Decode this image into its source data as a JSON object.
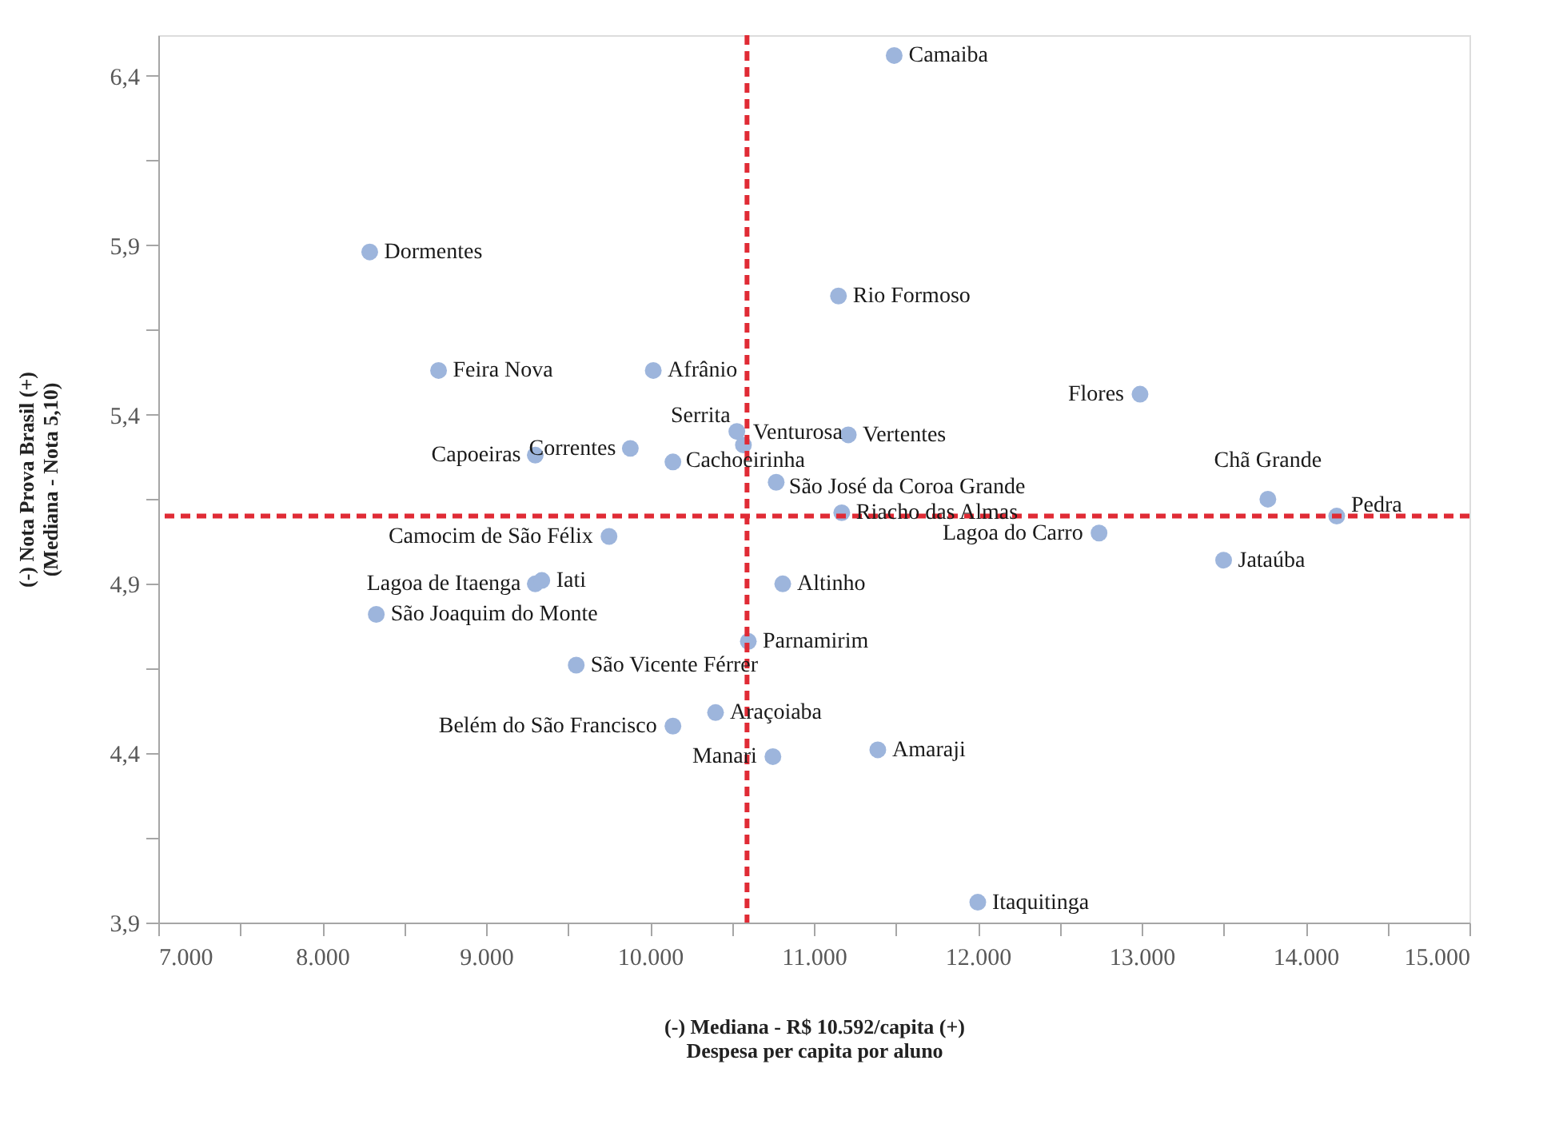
{
  "chart_data": {
    "type": "scatter",
    "xlabel": "(-)        Mediana - R$ 10.592/capita        (+)\nDespesa per capita por aluno",
    "ylabel": "(-)        Nota Prova Brasil        (+)\n(Mediana - Nota 5,10)",
    "marker": "circle",
    "color": "#9db5dc",
    "x": [
      11490,
      8290,
      11150,
      8710,
      10020,
      12990,
      10530,
      10570,
      11210,
      9880,
      9300,
      10140,
      10770,
      11170,
      13770,
      14190,
      12740,
      9750,
      13500,
      9300,
      9340,
      10810,
      8330,
      10600,
      9550,
      10400,
      10140,
      10750,
      11390,
      12000
    ],
    "values": [
      6.46,
      5.88,
      5.75,
      5.53,
      5.53,
      5.46,
      5.35,
      5.31,
      5.34,
      5.3,
      5.28,
      5.26,
      5.2,
      5.11,
      5.15,
      5.1,
      5.05,
      5.04,
      4.97,
      4.9,
      4.91,
      4.9,
      4.81,
      4.73,
      4.66,
      4.52,
      4.48,
      4.39,
      4.41,
      3.96
    ],
    "annotations": [
      {
        "text": "Camaiba",
        "x": 11490,
        "y": 6.46
      },
      {
        "text": "Dormentes",
        "x": 8290,
        "y": 5.88
      },
      {
        "text": "Rio Formoso",
        "x": 11150,
        "y": 5.75
      },
      {
        "text": "Feira Nova",
        "x": 8710,
        "y": 5.53
      },
      {
        "text": "Afrânio",
        "x": 10020,
        "y": 5.53
      },
      {
        "text": "Flores",
        "x": 12990,
        "y": 5.46
      },
      {
        "text": "Serrita",
        "x": 10530,
        "y": 5.35
      },
      {
        "text": "Venturosa",
        "x": 10570,
        "y": 5.31
      },
      {
        "text": "Vertentes",
        "x": 11210,
        "y": 5.34
      },
      {
        "text": "Correntes",
        "x": 9880,
        "y": 5.3
      },
      {
        "text": "Capoeiras",
        "x": 9300,
        "y": 5.28
      },
      {
        "text": "Cachoeirinha",
        "x": 10140,
        "y": 5.26
      },
      {
        "text": "São José da Coroa Grande",
        "x": 10770,
        "y": 5.2
      },
      {
        "text": "Riacho das Almas",
        "x": 11170,
        "y": 5.11
      },
      {
        "text": "Chã Grande",
        "x": 13770,
        "y": 5.15
      },
      {
        "text": "Pedra",
        "x": 14190,
        "y": 5.1
      },
      {
        "text": "Lagoa do Carro",
        "x": 12740,
        "y": 5.05
      },
      {
        "text": "Camocim de São Félix",
        "x": 9750,
        "y": 5.04
      },
      {
        "text": "Jataúba",
        "x": 13500,
        "y": 4.97
      },
      {
        "text": "Lagoa de Itaenga",
        "x": 9300,
        "y": 4.9
      },
      {
        "text": "Iati",
        "x": 9340,
        "y": 4.91
      },
      {
        "text": "Altinho",
        "x": 10810,
        "y": 4.9
      },
      {
        "text": "São Joaquim do Monte",
        "x": 8330,
        "y": 4.81
      },
      {
        "text": "Parnamirim",
        "x": 10600,
        "y": 4.73
      },
      {
        "text": "São Vicente Férrer",
        "x": 9550,
        "y": 4.66
      },
      {
        "text": "Araçoiaba",
        "x": 10400,
        "y": 4.52
      },
      {
        "text": "Belém do São Francisco",
        "x": 10140,
        "y": 4.48
      },
      {
        "text": "Manari",
        "x": 10750,
        "y": 4.39
      },
      {
        "text": "Amaraji",
        "x": 11390,
        "y": 4.41
      },
      {
        "text": "Itaquitinga",
        "x": 12000,
        "y": 3.96
      }
    ],
    "ref_lines": [
      {
        "axis": "x",
        "value": 10592,
        "color": "#e02b35",
        "line_style": "dashed"
      },
      {
        "axis": "y",
        "value": 5.1,
        "color": "#e02b35",
        "line_style": "dashed"
      }
    ],
    "xlim": [
      7000,
      15000
    ],
    "xticks": [
      {
        "value": 7000,
        "label": "7.000"
      },
      {
        "value": 7500,
        "label": null
      },
      {
        "value": 8000,
        "label": "8.000"
      },
      {
        "value": 8500,
        "label": null
      },
      {
        "value": 9000,
        "label": "9.000"
      },
      {
        "value": 9500,
        "label": null
      },
      {
        "value": 10000,
        "label": "10.000"
      },
      {
        "value": 10500,
        "label": null
      },
      {
        "value": 11000,
        "label": "11.000"
      },
      {
        "value": 11500,
        "label": null
      },
      {
        "value": 12000,
        "label": "12.000"
      },
      {
        "value": 12500,
        "label": null
      },
      {
        "value": 13000,
        "label": "13.000"
      },
      {
        "value": 13500,
        "label": null
      },
      {
        "value": 14000,
        "label": "14.000"
      },
      {
        "value": 14500,
        "label": null
      },
      {
        "value": 15000,
        "label": "15.000"
      }
    ],
    "ylim": [
      3.9,
      6.52
    ],
    "yticks": [
      {
        "value": 3.9,
        "label": "3,9"
      },
      {
        "value": 4.15,
        "label": null
      },
      {
        "value": 4.4,
        "label": "4,4"
      },
      {
        "value": 4.65,
        "label": null
      },
      {
        "value": 4.9,
        "label": "4,9"
      },
      {
        "value": 5.15,
        "label": null
      },
      {
        "value": 5.4,
        "label": "5,4"
      },
      {
        "value": 5.65,
        "label": null
      },
      {
        "value": 5.9,
        "label": "5,9"
      },
      {
        "value": 6.15,
        "label": null
      },
      {
        "value": 6.4,
        "label": "6,4"
      }
    ]
  }
}
